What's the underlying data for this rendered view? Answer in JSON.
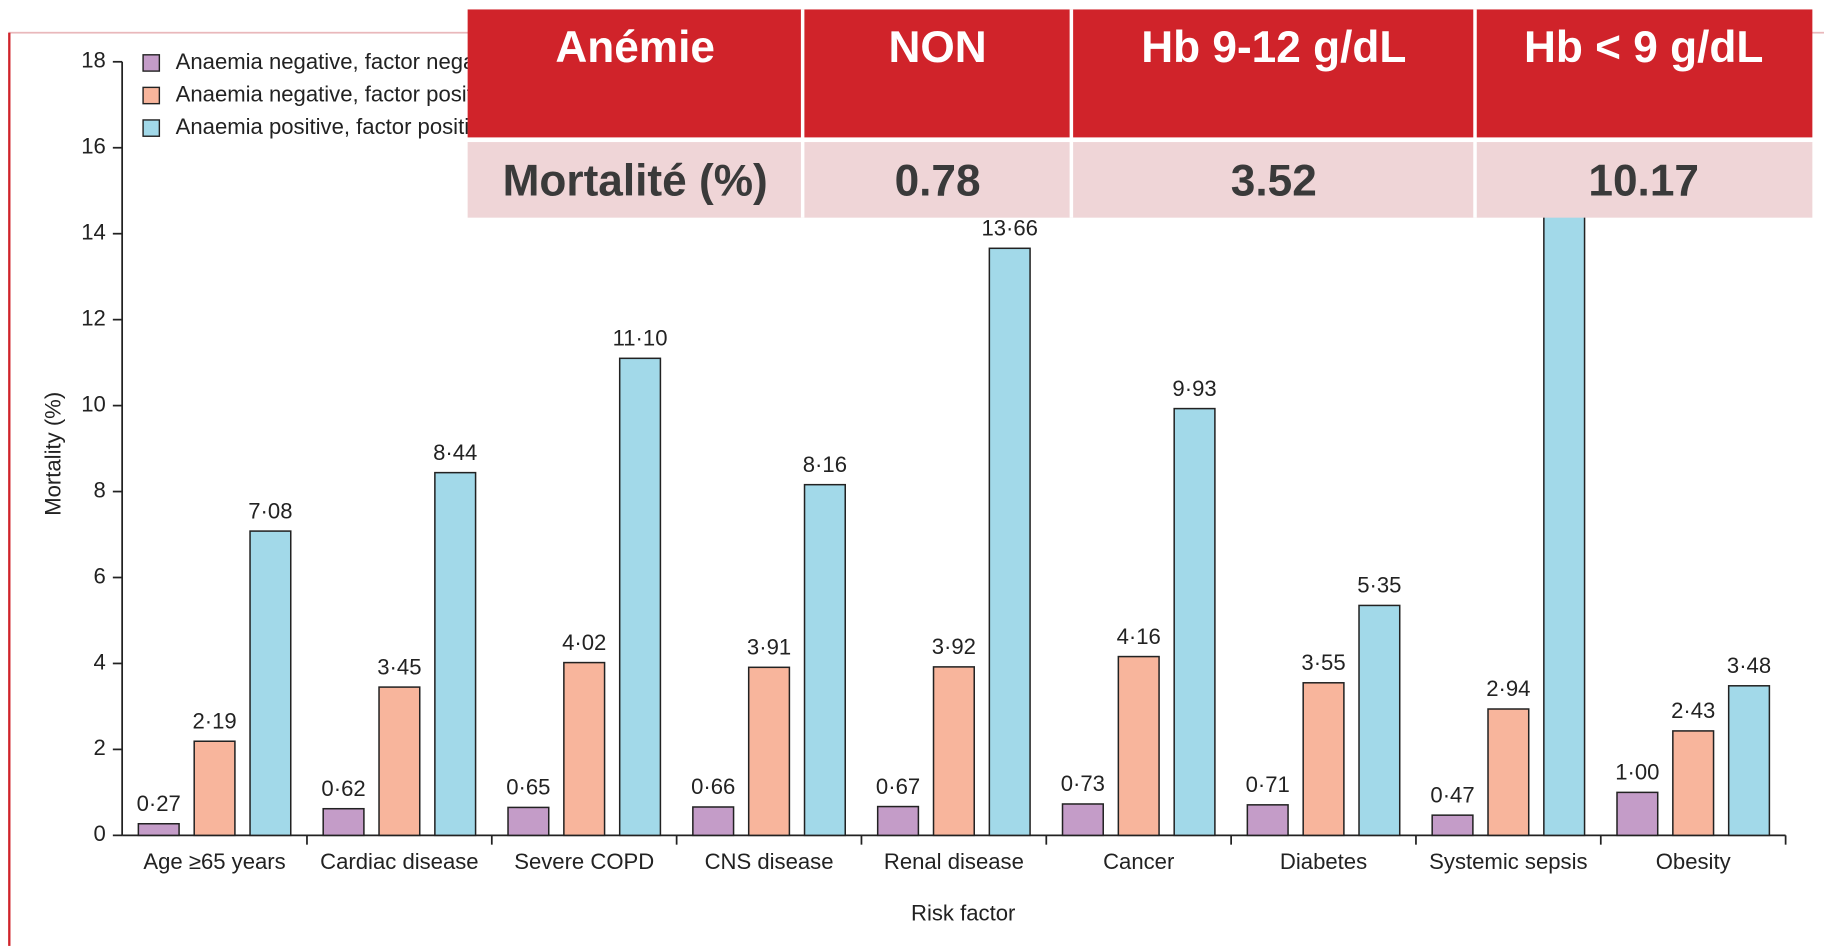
{
  "chart_data": {
    "type": "bar",
    "ylabel": "Mortality (%)",
    "xlabel": "Risk factor",
    "categories": [
      "Age ≥65 years",
      "Cardiac disease",
      "Severe COPD",
      "CNS disease",
      "Renal disease",
      "Cancer",
      "Diabetes",
      "Systemic sepsis",
      "Obesity"
    ],
    "series": [
      {
        "name": "Anaemia negative, factor negative",
        "color": "#c49cc8",
        "values": [
          0.27,
          0.62,
          0.65,
          0.66,
          0.67,
          0.73,
          0.71,
          0.47,
          1.0
        ],
        "value_labels": [
          "0·27",
          "0·62",
          "0·65",
          "0·66",
          "0·67",
          "0·73",
          "0·71",
          "0·47",
          "1·00"
        ]
      },
      {
        "name": "Anaemia negative, factor positive",
        "color": "#f8b59c",
        "values": [
          2.19,
          3.45,
          4.02,
          3.91,
          3.92,
          4.16,
          3.55,
          2.94,
          2.43
        ],
        "value_labels": [
          "2·19",
          "3·45",
          "4·02",
          "3·91",
          "3·92",
          "4·16",
          "3·55",
          "2·94",
          "2·43"
        ]
      },
      {
        "name": "Anaemia positive, factor positive",
        "color": "#a2d9e9",
        "values": [
          7.08,
          8.44,
          11.1,
          8.16,
          13.66,
          9.93,
          5.35,
          15.5,
          3.48
        ],
        "value_labels": [
          "7·08",
          "8·44",
          "11·10",
          "8·16",
          "13·66",
          "9·93",
          "5·35",
          null,
          "3·48"
        ]
      }
    ],
    "ylim": [
      0,
      18
    ],
    "yticks": [
      0,
      2,
      4,
      6,
      8,
      10,
      12,
      14,
      16,
      18
    ]
  },
  "table": {
    "header": [
      "Anémie",
      "NON",
      "Hb 9-12 g/dL",
      "Hb < 9 g/dL"
    ],
    "rows": [
      [
        "Mortalité (%)",
        "0.78",
        "3.52",
        "10.17"
      ]
    ]
  }
}
